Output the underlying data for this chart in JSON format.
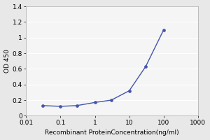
{
  "x": [
    0.03,
    0.1,
    0.3,
    1,
    3,
    10,
    30,
    100
  ],
  "y": [
    0.13,
    0.12,
    0.13,
    0.17,
    0.2,
    0.32,
    0.63,
    1.1
  ],
  "line_color": "#4455aa",
  "marker": "o",
  "marker_size": 2.8,
  "marker_facecolor": "#4455aa",
  "xlabel": "Recombinant ProteinConcentration(ng/ml)",
  "ylabel": "OD 450",
  "xlim": [
    0.01,
    1000
  ],
  "ylim": [
    0,
    1.4
  ],
  "yticks": [
    0,
    0.2,
    0.4,
    0.6,
    0.8,
    1.0,
    1.2,
    1.4
  ],
  "ytick_labels": [
    "0",
    "0.2",
    "0.4",
    "0.6",
    "0.8",
    "1",
    "1.2",
    "1.4"
  ],
  "xtick_positions": [
    0.01,
    0.1,
    1,
    10,
    100,
    1000
  ],
  "xtick_labels": [
    "0.01",
    "0.1",
    "1",
    "10",
    "100",
    "1000"
  ],
  "background_color": "#e8e8e8",
  "plot_bg_color": "#f5f5f5",
  "grid_color": "#ffffff",
  "font_size": 6.5,
  "label_font_size": 6.5,
  "linewidth": 1.0
}
